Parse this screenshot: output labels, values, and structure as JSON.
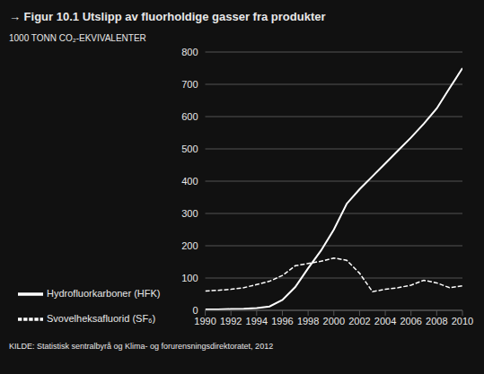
{
  "chart_data": {
    "type": "line",
    "title": "→ Figur 10.1 Utslipp av fluorholdige gasser fra produkter",
    "ylabel": "1000 TONN CO₂-EKVIVALENTER",
    "annotations": [
      "KILDE: Statistisk sentralbyrå og Klima- og forurensningsdirektoratet, 2012"
    ],
    "x": [
      1990,
      1991,
      1992,
      1993,
      1994,
      1995,
      1996,
      1997,
      1998,
      1999,
      2000,
      2001,
      2002,
      2003,
      2004,
      2005,
      2006,
      2007,
      2008,
      2009,
      2010
    ],
    "series": [
      {
        "name": "Hydrofluorkarboner (HFK)",
        "color": "#ffffff",
        "line_style": "solid",
        "values": [
          3,
          3,
          4,
          5,
          7,
          12,
          32,
          72,
          130,
          185,
          250,
          330,
          375,
          415,
          455,
          495,
          535,
          578,
          625,
          688,
          750
        ]
      },
      {
        "name": "Svovelheksafluorid (SF₆)",
        "color": "#ffffff",
        "line_style": "dashed",
        "values": [
          60,
          62,
          65,
          70,
          80,
          90,
          108,
          138,
          145,
          152,
          162,
          155,
          115,
          58,
          65,
          70,
          78,
          93,
          85,
          70,
          76
        ]
      }
    ],
    "xlim": [
      1990,
      2010
    ],
    "ylim": [
      0,
      800
    ],
    "xticks": [
      1990,
      1992,
      1994,
      1996,
      1998,
      2000,
      2002,
      2004,
      2006,
      2008,
      2010
    ],
    "yticks": [
      0,
      100,
      200,
      300,
      400,
      500,
      600,
      700,
      800
    ],
    "grid": true,
    "legend": "bottom"
  }
}
